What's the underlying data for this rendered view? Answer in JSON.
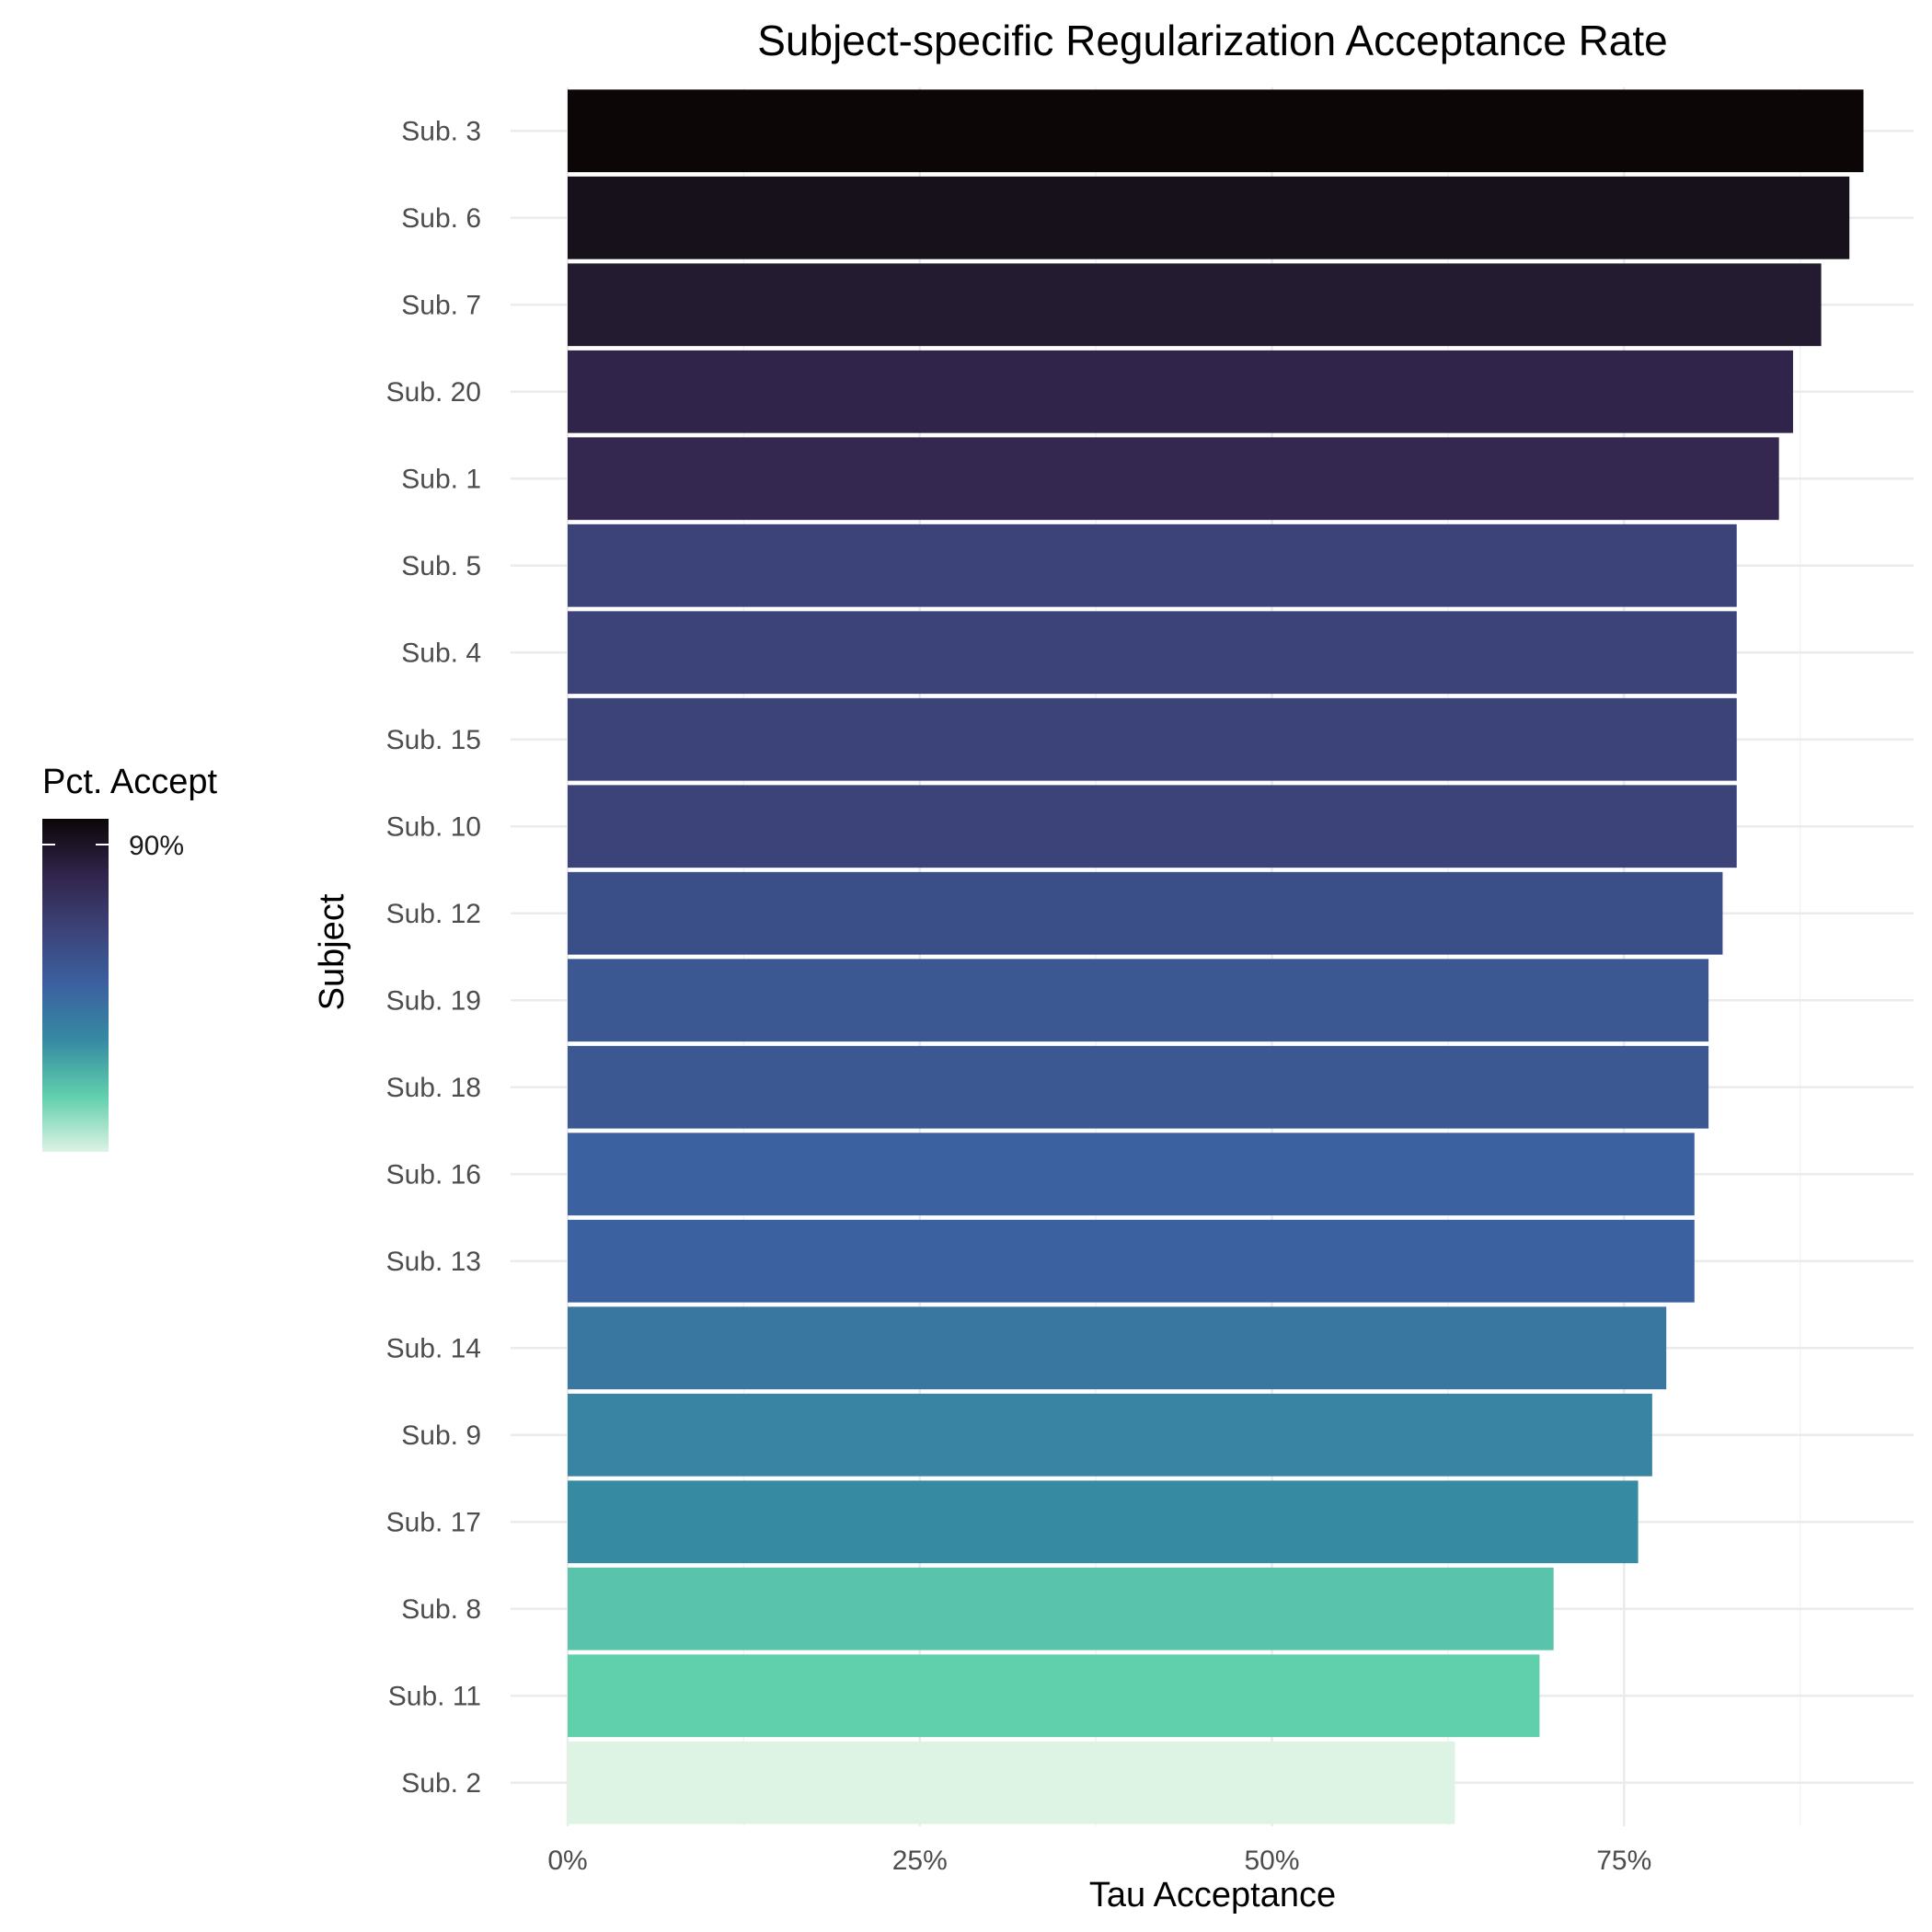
{
  "chart_data": {
    "type": "bar",
    "orientation": "horizontal",
    "title": "Subject-specific Regularization Acceptance Rate",
    "xlabel": "Tau Acceptance",
    "ylabel": "Subject",
    "xlim": [
      0,
      0.96
    ],
    "x_ticks": [
      0,
      0.25,
      0.5,
      0.75
    ],
    "x_tick_labels": [
      "0%",
      "25%",
      "50%",
      "75%"
    ],
    "grid": true,
    "categories": [
      "Sub. 3",
      "Sub. 6",
      "Sub. 7",
      "Sub. 20",
      "Sub. 1",
      "Sub. 5",
      "Sub. 4",
      "Sub. 15",
      "Sub. 10",
      "Sub. 12",
      "Sub. 19",
      "Sub. 18",
      "Sub. 16",
      "Sub. 13",
      "Sub. 14",
      "Sub. 9",
      "Sub. 17",
      "Sub. 8",
      "Sub. 11",
      "Sub. 2"
    ],
    "values": [
      0.92,
      0.91,
      0.89,
      0.87,
      0.86,
      0.83,
      0.83,
      0.83,
      0.83,
      0.82,
      0.81,
      0.81,
      0.8,
      0.8,
      0.78,
      0.77,
      0.76,
      0.7,
      0.69,
      0.63
    ],
    "colors": [
      "#0c0607",
      "#17111b",
      "#231c31",
      "#31244b",
      "#342850",
      "#3c4379",
      "#3c4379",
      "#3c4379",
      "#3c4379",
      "#3a4f87",
      "#3b5893",
      "#3b5893",
      "#3b61a0",
      "#3b61a0",
      "#3977a1",
      "#3a84a3",
      "#368ba3",
      "#59c3ac",
      "#60cfac",
      "#ddf3e4"
    ],
    "legend": {
      "title": "Pct. Accept",
      "labels": [
        "90%"
      ],
      "position": "left",
      "gradient": [
        "#ddf3e4",
        "#60cfac",
        "#368ba3",
        "#3b61a0",
        "#3c4379",
        "#31244b",
        "#0c0607"
      ]
    }
  }
}
